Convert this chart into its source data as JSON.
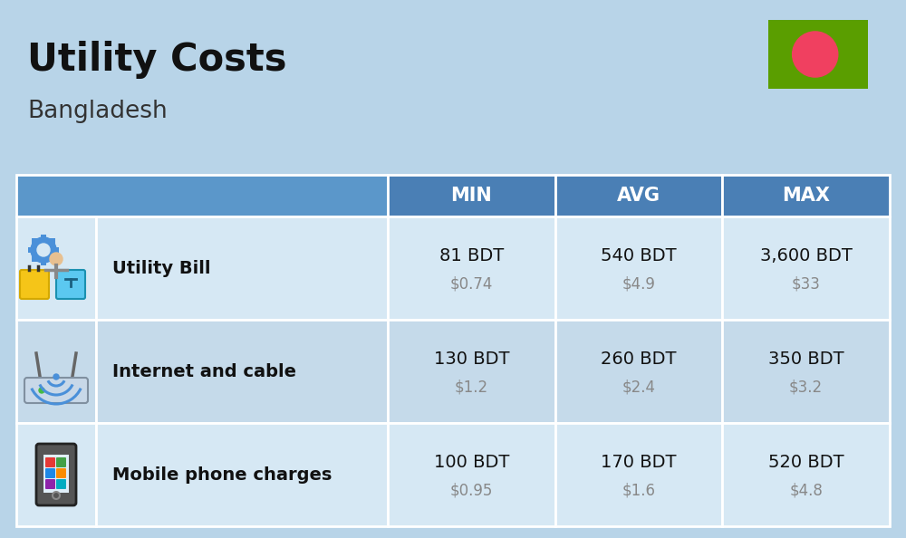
{
  "title": "Utility Costs",
  "subtitle": "Bangladesh",
  "bg_color": "#b8d4e8",
  "header_bg_color": "#4a7fb5",
  "header_text_color": "#ffffff",
  "col_headers": [
    "MIN",
    "AVG",
    "MAX"
  ],
  "rows": [
    {
      "label": "Utility Bill",
      "icon": "utility",
      "min_bdt": "81 BDT",
      "min_usd": "$0.74",
      "avg_bdt": "540 BDT",
      "avg_usd": "$4.9",
      "max_bdt": "3,600 BDT",
      "max_usd": "$33"
    },
    {
      "label": "Internet and cable",
      "icon": "internet",
      "min_bdt": "130 BDT",
      "min_usd": "$1.2",
      "avg_bdt": "260 BDT",
      "avg_usd": "$2.4",
      "max_bdt": "350 BDT",
      "max_usd": "$3.2"
    },
    {
      "label": "Mobile phone charges",
      "icon": "mobile",
      "min_bdt": "100 BDT",
      "min_usd": "$0.95",
      "avg_bdt": "170 BDT",
      "avg_usd": "$1.6",
      "max_bdt": "520 BDT",
      "max_usd": "$4.8"
    }
  ],
  "flag_green": "#5a9e00",
  "flag_red": "#f04060",
  "title_fontsize": 30,
  "subtitle_fontsize": 19,
  "header_fontsize": 15,
  "label_fontsize": 14,
  "value_fontsize": 14,
  "usd_fontsize": 12,
  "usd_color": "#888888",
  "row_color_odd": "#d6e8f4",
  "row_color_even": "#c5daea",
  "border_color": "#ffffff"
}
